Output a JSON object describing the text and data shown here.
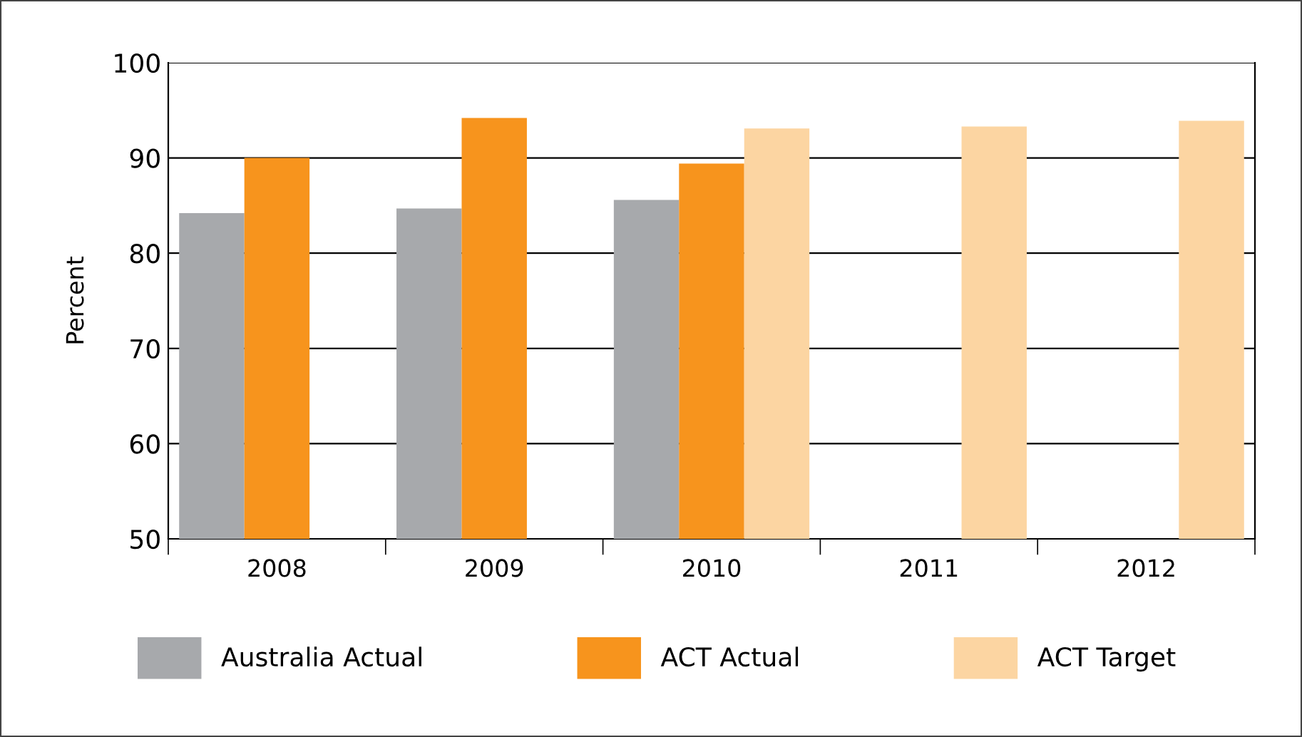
{
  "chart_data": {
    "type": "bar",
    "ylabel": "Percent",
    "categories": [
      "2008",
      "2009",
      "2010",
      "2011",
      "2012"
    ],
    "series": [
      {
        "name": "Australia Actual",
        "color": "#a7a9ac",
        "values": [
          84.2,
          84.7,
          85.6,
          null,
          null
        ]
      },
      {
        "name": "ACT Actual",
        "color": "#f7941d",
        "values": [
          90.0,
          94.2,
          89.4,
          null,
          null
        ]
      },
      {
        "name": "ACT Target",
        "color": "#fcd5a2",
        "values": [
          null,
          null,
          93.1,
          93.3,
          93.9
        ]
      }
    ],
    "ylim": [
      50,
      100
    ],
    "yticks": [
      50,
      60,
      70,
      80,
      90,
      100
    ],
    "grid": "y",
    "legend": "bottom"
  }
}
